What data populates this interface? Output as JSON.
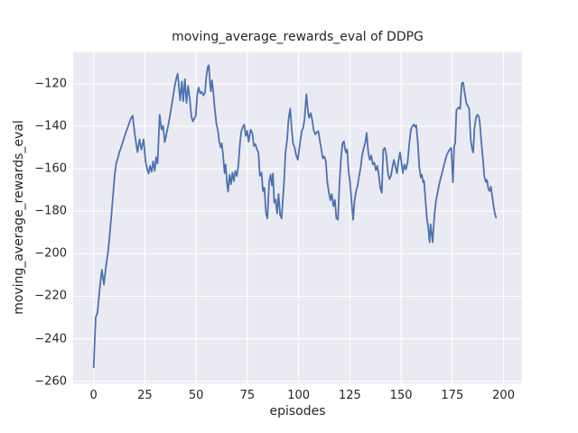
{
  "chart_data": {
    "type": "line",
    "title": "moving_average_rewards_eval of DDPG",
    "xlabel": "episodes",
    "ylabel": "moving_average_rewards_eval",
    "xlim": [
      -10,
      209
    ],
    "ylim": [
      -261,
      -105.2
    ],
    "x_ticks": [
      0,
      25,
      50,
      75,
      100,
      125,
      150,
      175,
      200
    ],
    "x_tick_labels": [
      "0",
      "25",
      "50",
      "75",
      "100",
      "125",
      "150",
      "175",
      "200"
    ],
    "y_ticks": [
      -120,
      -140,
      -160,
      -180,
      -200,
      -220,
      -240,
      -260
    ],
    "y_tick_labels": [
      "−120",
      "−140",
      "−160",
      "−180",
      "−200",
      "−220",
      "−240",
      "−260"
    ],
    "grid": true,
    "legend": "none",
    "colors": {
      "line": "#4c72b0",
      "axes_background": "#eaeaf2",
      "grid": "#ffffff",
      "figure_background": "#ffffff",
      "text": "#262626"
    },
    "series": [
      {
        "name": "moving_average_rewards_eval",
        "points": [
          [
            0,
            -253.5
          ],
          [
            1,
            -230
          ],
          [
            1.9,
            -227.5
          ],
          [
            3,
            -216
          ],
          [
            4,
            -207.5
          ],
          [
            5,
            -214.5
          ],
          [
            6,
            -206
          ],
          [
            7,
            -199.5
          ],
          [
            7.8,
            -191.5
          ],
          [
            8.7,
            -181.5
          ],
          [
            9.5,
            -172
          ],
          [
            10.3,
            -162.5
          ],
          [
            11,
            -157.5
          ],
          [
            11.8,
            -155
          ],
          [
            12.6,
            -152
          ],
          [
            13.4,
            -150
          ],
          [
            14.2,
            -147.5
          ],
          [
            15,
            -145
          ],
          [
            15.8,
            -142.7
          ],
          [
            16.6,
            -140.6
          ],
          [
            17.4,
            -138.4
          ],
          [
            18.2,
            -136.3
          ],
          [
            19,
            -135
          ],
          [
            20,
            -143
          ],
          [
            20.8,
            -148.5
          ],
          [
            21.4,
            -152.2
          ],
          [
            22.4,
            -146.2
          ],
          [
            23.3,
            -151
          ],
          [
            24.4,
            -146.2
          ],
          [
            25.3,
            -156.5
          ],
          [
            26.1,
            -160
          ],
          [
            26.8,
            -162.3
          ],
          [
            27.5,
            -158.6
          ],
          [
            28.3,
            -161.5
          ],
          [
            29,
            -156.5
          ],
          [
            29.8,
            -161
          ],
          [
            30.5,
            -154.5
          ],
          [
            31.2,
            -157.5
          ],
          [
            32.2,
            -134.6
          ],
          [
            33.1,
            -141.5
          ],
          [
            33.9,
            -139.8
          ],
          [
            34.7,
            -147.5
          ],
          [
            35.5,
            -143.8
          ],
          [
            36.5,
            -139
          ],
          [
            37.5,
            -133.5
          ],
          [
            38.5,
            -127.5
          ],
          [
            39.4,
            -122
          ],
          [
            40.2,
            -118
          ],
          [
            41,
            -115.2
          ],
          [
            42.2,
            -127.8
          ],
          [
            43,
            -119
          ],
          [
            43.7,
            -128.3
          ],
          [
            44.5,
            -117.8
          ],
          [
            45.3,
            -129
          ],
          [
            46.1,
            -121
          ],
          [
            46.9,
            -127
          ],
          [
            47.7,
            -135.5
          ],
          [
            48.4,
            -137.8
          ],
          [
            49.1,
            -136.3
          ],
          [
            49.8,
            -135.2
          ],
          [
            50.6,
            -124.5
          ],
          [
            51.2,
            -121.8
          ],
          [
            52,
            -124.5
          ],
          [
            52.8,
            -123.8
          ],
          [
            53.5,
            -125.5
          ],
          [
            54.3,
            -124.3
          ],
          [
            55,
            -116.5
          ],
          [
            55.7,
            -112
          ],
          [
            56.2,
            -111.3
          ],
          [
            56.8,
            -119.9
          ],
          [
            57.2,
            -123.5
          ],
          [
            57.7,
            -118.3
          ],
          [
            58.4,
            -124.1
          ],
          [
            59.1,
            -131.8
          ],
          [
            59.9,
            -138.8
          ],
          [
            60.6,
            -141.8
          ],
          [
            61.3,
            -147.3
          ],
          [
            62,
            -150
          ],
          [
            62.5,
            -148
          ],
          [
            63.1,
            -153
          ],
          [
            63.9,
            -162
          ],
          [
            64.4,
            -158
          ],
          [
            65,
            -166.3
          ],
          [
            65.6,
            -170.8
          ],
          [
            66.3,
            -162.8
          ],
          [
            67,
            -167.3
          ],
          [
            67.7,
            -161.8
          ],
          [
            68.4,
            -165.8
          ],
          [
            69.1,
            -161
          ],
          [
            69.9,
            -163.4
          ],
          [
            70.6,
            -158.5
          ],
          [
            71.3,
            -149
          ],
          [
            72,
            -142.5
          ],
          [
            72.8,
            -140.2
          ],
          [
            73.5,
            -139.2
          ],
          [
            74.2,
            -144.5
          ],
          [
            74.9,
            -142.2
          ],
          [
            75.6,
            -147.3
          ],
          [
            76.6,
            -141.6
          ],
          [
            77.4,
            -143.2
          ],
          [
            78.2,
            -149.3
          ],
          [
            78.9,
            -148.4
          ],
          [
            79.6,
            -150.8
          ],
          [
            80.4,
            -152.4
          ],
          [
            81.1,
            -163.4
          ],
          [
            81.9,
            -161.8
          ],
          [
            82.6,
            -170.5
          ],
          [
            83.3,
            -169
          ],
          [
            84.1,
            -181
          ],
          [
            84.8,
            -183.4
          ],
          [
            85.6,
            -166.5
          ],
          [
            86.3,
            -162.7
          ],
          [
            87,
            -167.8
          ],
          [
            87.5,
            -162.2
          ],
          [
            88.1,
            -176
          ],
          [
            88.8,
            -174.5
          ],
          [
            89.5,
            -181
          ],
          [
            90.2,
            -171.9
          ],
          [
            91,
            -181.8
          ],
          [
            91.7,
            -183.4
          ],
          [
            92.9,
            -166.3
          ],
          [
            93.6,
            -152.2
          ],
          [
            94.4,
            -146.5
          ],
          [
            95.1,
            -136.6
          ],
          [
            95.9,
            -131.7
          ],
          [
            96.6,
            -141
          ],
          [
            97.3,
            -148
          ],
          [
            98.1,
            -150.2
          ],
          [
            98.8,
            -153.6
          ],
          [
            99.6,
            -155.8
          ],
          [
            100.7,
            -147.9
          ],
          [
            101.5,
            -142.3
          ],
          [
            102.2,
            -140.9
          ],
          [
            102.9,
            -136.6
          ],
          [
            103.8,
            -124.9
          ],
          [
            104.5,
            -132.5
          ],
          [
            105.1,
            -136
          ],
          [
            105.9,
            -133.8
          ],
          [
            106.6,
            -136.8
          ],
          [
            107.3,
            -141.6
          ],
          [
            108.1,
            -143.8
          ],
          [
            108.8,
            -142.9
          ],
          [
            109.6,
            -142.3
          ],
          [
            110.3,
            -146.5
          ],
          [
            111.1,
            -150.9
          ],
          [
            111.8,
            -155.1
          ],
          [
            112.5,
            -154.2
          ],
          [
            113.3,
            -156.5
          ],
          [
            114,
            -166.3
          ],
          [
            114.8,
            -171.3
          ],
          [
            115.5,
            -174.8
          ],
          [
            116.2,
            -171.9
          ],
          [
            117,
            -177.6
          ],
          [
            117.7,
            -174.7
          ],
          [
            118.4,
            -183.2
          ],
          [
            119.2,
            -184
          ],
          [
            119.9,
            -167.7
          ],
          [
            120.7,
            -155
          ],
          [
            121.4,
            -148
          ],
          [
            122.1,
            -147.1
          ],
          [
            122.7,
            -150.9
          ],
          [
            123.1,
            -152.3
          ],
          [
            123.7,
            -150.9
          ],
          [
            124.4,
            -161.3
          ],
          [
            125.1,
            -166.4
          ],
          [
            125.9,
            -176.2
          ],
          [
            126.6,
            -184
          ],
          [
            127.3,
            -174.8
          ],
          [
            128.1,
            -170.5
          ],
          [
            128.8,
            -167.8
          ],
          [
            129.5,
            -163.5
          ],
          [
            130.3,
            -159.2
          ],
          [
            131,
            -153.7
          ],
          [
            131.8,
            -150.1
          ],
          [
            132.5,
            -147.9
          ],
          [
            133.2,
            -143.1
          ],
          [
            134,
            -152.3
          ],
          [
            134.7,
            -155.8
          ],
          [
            135.4,
            -153.7
          ],
          [
            136.2,
            -157.9
          ],
          [
            136.9,
            -157.1
          ],
          [
            137.7,
            -160.7
          ],
          [
            138.4,
            -158.6
          ],
          [
            139.1,
            -162.8
          ],
          [
            139.9,
            -169.2
          ],
          [
            140.6,
            -171.3
          ],
          [
            141.3,
            -151
          ],
          [
            142.1,
            -150.2
          ],
          [
            142.8,
            -153.7
          ],
          [
            143.6,
            -162
          ],
          [
            144.3,
            -164.9
          ],
          [
            145,
            -163.5
          ],
          [
            145.8,
            -159.2
          ],
          [
            146.5,
            -155.8
          ],
          [
            147.2,
            -158.6
          ],
          [
            148,
            -162.1
          ],
          [
            148.7,
            -156.5
          ],
          [
            149.5,
            -152.3
          ],
          [
            150.9,
            -162.1
          ],
          [
            151.6,
            -157.9
          ],
          [
            152.4,
            -160.3
          ],
          [
            153.2,
            -156.8
          ],
          [
            154,
            -148
          ],
          [
            154.8,
            -141.5
          ],
          [
            155.6,
            -139.8
          ],
          [
            156.3,
            -139.2
          ],
          [
            156.8,
            -140.3
          ],
          [
            157.4,
            -139.5
          ],
          [
            158.2,
            -148
          ],
          [
            158.9,
            -159.2
          ],
          [
            159.6,
            -164.1
          ],
          [
            160.1,
            -162.7
          ],
          [
            160.8,
            -166.4
          ],
          [
            161.2,
            -165.6
          ],
          [
            161.9,
            -174.8
          ],
          [
            162.6,
            -183.3
          ],
          [
            163.3,
            -188.2
          ],
          [
            163.9,
            -194.6
          ],
          [
            164.4,
            -186.1
          ],
          [
            164.9,
            -190.4
          ],
          [
            165.4,
            -194.6
          ],
          [
            165.9,
            -186.8
          ],
          [
            166.4,
            -180.5
          ],
          [
            167.1,
            -174.8
          ],
          [
            167.8,
            -171.3
          ],
          [
            168.5,
            -167.8
          ],
          [
            169.2,
            -164.9
          ],
          [
            170,
            -162.1
          ],
          [
            170.7,
            -159.2
          ],
          [
            171.4,
            -156.5
          ],
          [
            172.2,
            -153.7
          ],
          [
            172.9,
            -152.3
          ],
          [
            173.7,
            -150.9
          ],
          [
            174.5,
            -150.2
          ],
          [
            175.3,
            -166.4
          ],
          [
            175.9,
            -149.5
          ],
          [
            176.4,
            -148
          ],
          [
            177,
            -132.5
          ],
          [
            177.5,
            -131.8
          ],
          [
            178.1,
            -131.1
          ],
          [
            178.8,
            -131.8
          ],
          [
            179.6,
            -119.8
          ],
          [
            180.3,
            -119.4
          ],
          [
            181,
            -124.1
          ],
          [
            181.8,
            -129
          ],
          [
            182.5,
            -130.4
          ],
          [
            183.2,
            -131.8
          ],
          [
            184,
            -146.6
          ],
          [
            184.7,
            -150.9
          ],
          [
            185.2,
            -152.3
          ],
          [
            185.8,
            -141
          ],
          [
            186.5,
            -136.1
          ],
          [
            187.2,
            -134.6
          ],
          [
            187.9,
            -135.3
          ],
          [
            188.4,
            -138.2
          ],
          [
            189.1,
            -146.6
          ],
          [
            189.9,
            -155.1
          ],
          [
            190.6,
            -163.5
          ],
          [
            191.4,
            -166.3
          ],
          [
            191.9,
            -165.2
          ],
          [
            192.6,
            -169.5
          ],
          [
            193.2,
            -170.5
          ],
          [
            193.8,
            -168.4
          ],
          [
            194.5,
            -173.1
          ],
          [
            195.1,
            -177.3
          ],
          [
            195.7,
            -180.8
          ],
          [
            196.3,
            -182.9
          ]
        ]
      }
    ]
  }
}
